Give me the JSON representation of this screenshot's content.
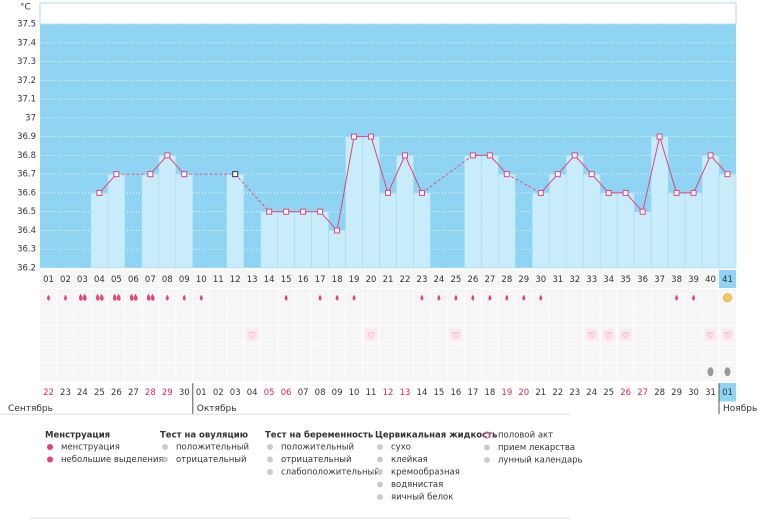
{
  "chart_data": {
    "type": "line",
    "y_unit": "°C",
    "ylim": [
      36.2,
      37.5
    ],
    "yticks": [
      36.2,
      36.3,
      36.4,
      36.5,
      36.6,
      36.7,
      36.8,
      36.9,
      37,
      37.1,
      37.2,
      37.3,
      37.4,
      37.5
    ],
    "grid": true,
    "categories": [
      "01",
      "02",
      "03",
      "04",
      "05",
      "06",
      "07",
      "08",
      "09",
      "10",
      "11",
      "12",
      "13",
      "14",
      "15",
      "16",
      "17",
      "18",
      "19",
      "20",
      "21",
      "22",
      "23",
      "24",
      "25",
      "26",
      "27",
      "28",
      "29",
      "30",
      "31",
      "32",
      "33",
      "34",
      "35",
      "36",
      "37",
      "38",
      "39",
      "40",
      "41"
    ],
    "series": [
      {
        "name": "temperature",
        "color": "#e0457b",
        "bar_color": "#c9ecfb",
        "values": [
          null,
          null,
          null,
          36.6,
          36.7,
          null,
          36.7,
          36.8,
          36.7,
          null,
          null,
          36.7,
          null,
          36.5,
          36.5,
          36.5,
          36.5,
          36.4,
          36.9,
          36.9,
          36.6,
          36.8,
          36.6,
          null,
          null,
          36.8,
          36.8,
          36.7,
          null,
          36.6,
          36.7,
          36.8,
          36.7,
          36.6,
          36.6,
          36.5,
          36.9,
          36.6,
          36.6,
          36.8,
          36.7
        ]
      }
    ],
    "dates": [
      "22",
      "23",
      "24",
      "25",
      "26",
      "27",
      "28",
      "29",
      "30",
      "01",
      "02",
      "03",
      "04",
      "05",
      "06",
      "07",
      "08",
      "09",
      "10",
      "11",
      "12",
      "13",
      "14",
      "15",
      "16",
      "17",
      "18",
      "19",
      "20",
      "21",
      "22",
      "23",
      "24",
      "25",
      "26",
      "27",
      "28",
      "29",
      "30",
      "31",
      "01"
    ],
    "months": [
      "Сентябрь",
      "Октябрь",
      "Ноябрь"
    ]
  },
  "legend": {
    "groups": [
      {
        "title": "Менструация",
        "items": [
          "менструация",
          "небольшие выделения"
        ]
      },
      {
        "title": "Тест на овуляцию",
        "items": [
          "положительный",
          "отрицательный"
        ]
      },
      {
        "title": "Тест на беременность",
        "items": [
          "положительный",
          "отрицательный",
          "слабоположительный"
        ]
      },
      {
        "title": "Цервикальная жидкость",
        "items": [
          "сухо",
          "клейкая",
          "кремообразная",
          "водянистая",
          "яичный белок"
        ]
      },
      {
        "items": [
          "половой акт",
          "прием лекарства",
          "лунный календарь"
        ]
      }
    ]
  }
}
